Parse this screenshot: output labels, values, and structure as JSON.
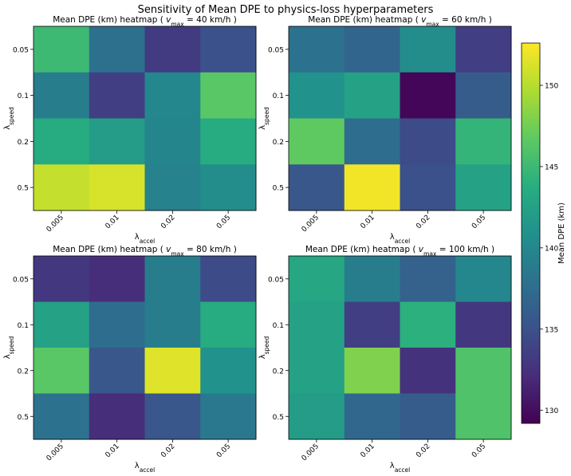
{
  "figure": {
    "suptitle": "Sensitivity of Mean DPE to physics-loss hyperparameters"
  },
  "chart_data": [
    {
      "type": "heatmap",
      "title": "Mean DPE (km) heatmap ( v_max = 40 km/h )",
      "vmax_value": "40",
      "xlabel": "λ_accel",
      "ylabel": "λ_speed",
      "x_categories": [
        "0.005",
        "0.01",
        "0.02",
        "0.05"
      ],
      "y_categories": [
        "0.05",
        "0.1",
        "0.2",
        "0.5"
      ],
      "values": [
        [
          145.0,
          137.8,
          133.2,
          135.0
        ],
        [
          139.0,
          133.5,
          140.0,
          146.5
        ],
        [
          143.5,
          142.0,
          139.8,
          143.5
        ],
        [
          150.5,
          151.2,
          139.5,
          140.5
        ]
      ]
    },
    {
      "type": "heatmap",
      "title": "Mean DPE (km) heatmap ( v_max = 60 km/h )",
      "vmax_value": "60",
      "xlabel": "λ_accel",
      "ylabel": "λ_speed",
      "x_categories": [
        "0.005",
        "0.01",
        "0.02",
        "0.05"
      ],
      "y_categories": [
        "0.05",
        "0.1",
        "0.2",
        "0.5"
      ],
      "values": [
        [
          138.0,
          136.8,
          140.5,
          133.5
        ],
        [
          141.0,
          142.5,
          129.5,
          136.0
        ],
        [
          146.8,
          137.5,
          134.5,
          144.5
        ],
        [
          135.5,
          152.2,
          135.0,
          142.5
        ]
      ]
    },
    {
      "type": "heatmap",
      "title": "Mean DPE (km) heatmap ( v_max = 80 km/h )",
      "vmax_value": "80",
      "xlabel": "λ_accel",
      "ylabel": "λ_speed",
      "x_categories": [
        "0.005",
        "0.01",
        "0.02",
        "0.05"
      ],
      "y_categories": [
        "0.05",
        "0.1",
        "0.2",
        "0.5"
      ],
      "values": [
        [
          133.0,
          132.2,
          139.0,
          134.5
        ],
        [
          142.5,
          137.5,
          139.0,
          143.5
        ],
        [
          146.5,
          135.5,
          151.5,
          141.0
        ],
        [
          138.0,
          132.2,
          135.5,
          138.5
        ]
      ]
    },
    {
      "type": "heatmap",
      "title": "Mean DPE (km) heatmap ( v_max = 100 km/h )",
      "vmax_value": "100",
      "xlabel": "λ_accel",
      "ylabel": "λ_speed",
      "x_categories": [
        "0.005",
        "0.01",
        "0.02",
        "0.05"
      ],
      "y_categories": [
        "0.05",
        "0.1",
        "0.2",
        "0.5"
      ],
      "values": [
        [
          143.0,
          139.0,
          136.5,
          140.0
        ],
        [
          142.5,
          133.5,
          144.0,
          133.0
        ],
        [
          142.5,
          148.0,
          132.5,
          146.0
        ],
        [
          142.0,
          137.0,
          136.0,
          146.0
        ]
      ]
    }
  ],
  "colorbar": {
    "label": "Mean DPE (km)",
    "colormap": "viridis",
    "vmin": 129.2,
    "vmax": 152.6,
    "ticks": [
      "130",
      "135",
      "140",
      "145",
      "150"
    ]
  }
}
